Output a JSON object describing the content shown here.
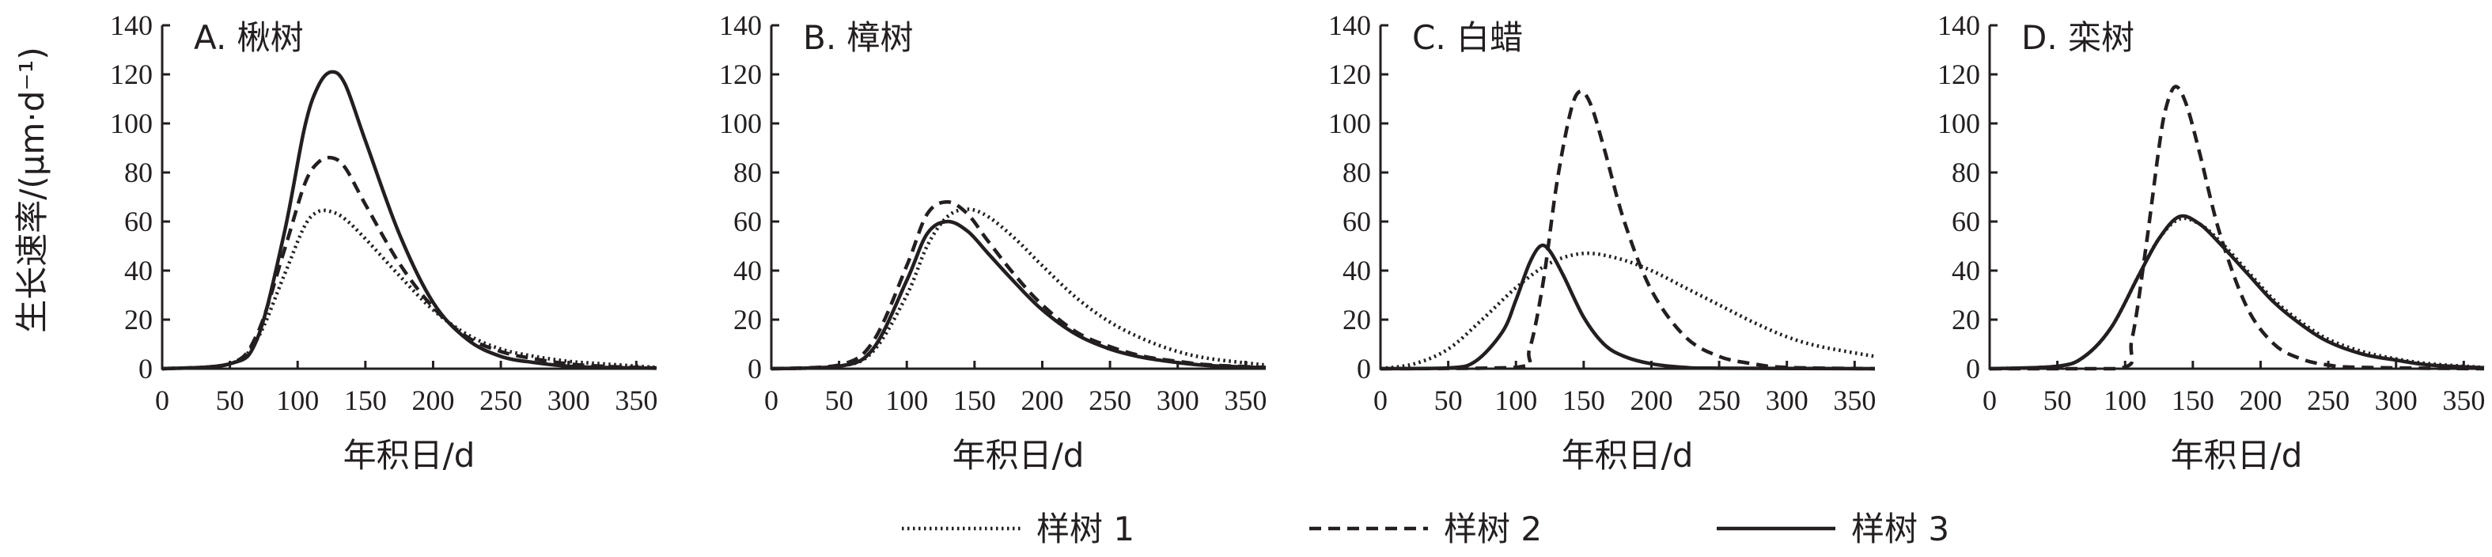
{
  "figure": {
    "y_axis_label": "生长速率/(μm·d⁻¹)",
    "legend": [
      {
        "label": "样树 1",
        "style": "dotted"
      },
      {
        "label": "样树 2",
        "style": "dashed"
      },
      {
        "label": "样树 3",
        "style": "solid"
      }
    ]
  },
  "chart_data": [
    {
      "type": "line",
      "title": "A. 楸树",
      "xlabel": "年积日/d",
      "xlim": [
        0,
        365
      ],
      "ylim": [
        0,
        140
      ],
      "xticks": [
        0,
        50,
        100,
        150,
        200,
        250,
        300,
        350
      ],
      "yticks": [
        0,
        20,
        40,
        60,
        80,
        100,
        120,
        140
      ],
      "series": [
        {
          "name": "样树 1",
          "x": [
            0,
            50,
            70,
            90,
            105,
            115,
            125,
            135,
            150,
            175,
            200,
            225,
            250,
            275,
            300,
            325,
            365
          ],
          "values": [
            0,
            2,
            12,
            38,
            58,
            64,
            64,
            61,
            53,
            38,
            24,
            14,
            8,
            5,
            3,
            2,
            0.5
          ]
        },
        {
          "name": "样树 2",
          "x": [
            0,
            50,
            70,
            90,
            105,
            115,
            125,
            135,
            150,
            175,
            200,
            225,
            250,
            275,
            300,
            325,
            365
          ],
          "values": [
            0,
            2,
            14,
            48,
            75,
            84,
            86,
            82,
            67,
            43,
            25,
            13,
            7,
            4,
            2,
            1,
            0.3
          ]
        },
        {
          "name": "样树 3",
          "x": [
            0,
            50,
            70,
            90,
            105,
            115,
            125,
            135,
            150,
            175,
            200,
            225,
            250,
            275,
            300,
            325,
            365
          ],
          "values": [
            0,
            2,
            12,
            55,
            98,
            115,
            121,
            116,
            93,
            55,
            27,
            12,
            5,
            2.5,
            1,
            0.5,
            0.2
          ]
        }
      ]
    },
    {
      "type": "line",
      "title": "B. 樟树",
      "xlabel": "年积日/d",
      "xlim": [
        0,
        365
      ],
      "ylim": [
        0,
        140
      ],
      "xticks": [
        0,
        50,
        100,
        150,
        200,
        250,
        300,
        350
      ],
      "yticks": [
        0,
        20,
        40,
        60,
        80,
        100,
        120,
        140
      ],
      "series": [
        {
          "name": "样树 1",
          "x": [
            0,
            50,
            75,
            100,
            115,
            130,
            145,
            160,
            180,
            200,
            225,
            250,
            275,
            300,
            325,
            365
          ],
          "values": [
            0,
            1,
            7,
            30,
            50,
            62,
            65,
            62,
            53,
            42,
            29,
            19,
            12,
            7,
            4,
            1.5
          ]
        },
        {
          "name": "样树 2",
          "x": [
            0,
            50,
            75,
            100,
            115,
            130,
            145,
            160,
            180,
            200,
            225,
            250,
            275,
            300,
            325,
            365
          ],
          "values": [
            0,
            1.5,
            11,
            42,
            63,
            68,
            63,
            52,
            38,
            26,
            15,
            9,
            5,
            3,
            1.5,
            0.5
          ]
        },
        {
          "name": "样树 3",
          "x": [
            0,
            50,
            75,
            100,
            115,
            130,
            145,
            160,
            180,
            200,
            225,
            250,
            275,
            300,
            325,
            365
          ],
          "values": [
            0,
            1,
            8,
            36,
            55,
            60,
            56,
            47,
            35,
            24,
            14,
            8,
            4.5,
            2.5,
            1.2,
            0.4
          ]
        }
      ]
    },
    {
      "type": "line",
      "title": "C. 白蜡",
      "xlabel": "年积日/d",
      "xlim": [
        0,
        365
      ],
      "ylim": [
        0,
        140
      ],
      "xticks": [
        0,
        50,
        100,
        150,
        200,
        250,
        300,
        350
      ],
      "yticks": [
        0,
        20,
        40,
        60,
        80,
        100,
        120,
        140
      ],
      "series": [
        {
          "name": "样树 1",
          "x": [
            0,
            25,
            50,
            75,
            100,
            125,
            150,
            175,
            200,
            225,
            250,
            275,
            300,
            325,
            365
          ],
          "values": [
            0,
            2,
            8,
            20,
            33,
            43,
            47,
            45,
            40,
            33,
            26,
            19,
            13,
            9,
            5
          ]
        },
        {
          "name": "样树 2",
          "x": [
            0,
            100,
            110,
            120,
            130,
            140,
            147,
            155,
            165,
            180,
            200,
            225,
            250,
            275,
            300,
            365
          ],
          "values": [
            0,
            0.5,
            8,
            35,
            75,
            104,
            113,
            108,
            90,
            60,
            32,
            13,
            5,
            2,
            0.5,
            0
          ]
        },
        {
          "name": "样树 3",
          "x": [
            0,
            50,
            70,
            90,
            100,
            110,
            118,
            125,
            135,
            150,
            165,
            180,
            200,
            225,
            250,
            365
          ],
          "values": [
            0,
            0.3,
            3,
            15,
            28,
            43,
            50,
            48,
            38,
            21,
            10,
            5,
            2,
            0.5,
            0.2,
            0
          ]
        }
      ]
    },
    {
      "type": "line",
      "title": "D. 栾树",
      "xlabel": "年积日/d",
      "xlim": [
        0,
        365
      ],
      "ylim": [
        0,
        140
      ],
      "xticks": [
        0,
        50,
        100,
        150,
        200,
        250,
        300,
        350
      ],
      "yticks": [
        0,
        20,
        40,
        60,
        80,
        100,
        120,
        140
      ],
      "series": [
        {
          "name": "样树 1",
          "x": [
            0,
            50,
            70,
            90,
            110,
            125,
            140,
            155,
            170,
            190,
            210,
            230,
            250,
            275,
            300,
            325,
            365
          ],
          "values": [
            0,
            1,
            5,
            17,
            38,
            53,
            61,
            59,
            52,
            40,
            28,
            19,
            12,
            7,
            4,
            2,
            0.5
          ]
        },
        {
          "name": "样树 2",
          "x": [
            0,
            95,
            105,
            115,
            125,
            130,
            137,
            145,
            155,
            170,
            190,
            210,
            230,
            250,
            275,
            365
          ],
          "values": [
            0,
            0,
            12,
            48,
            90,
            106,
            115,
            108,
            88,
            55,
            25,
            10,
            4,
            1.5,
            0.5,
            0
          ]
        },
        {
          "name": "样树 3",
          "x": [
            0,
            50,
            70,
            90,
            110,
            125,
            140,
            155,
            170,
            190,
            210,
            230,
            250,
            275,
            300,
            325,
            365
          ],
          "values": [
            0,
            1,
            5,
            17,
            38,
            53,
            62,
            59,
            51,
            39,
            27,
            18,
            11,
            6,
            3.5,
            1.5,
            0.4
          ]
        }
      ]
    }
  ]
}
